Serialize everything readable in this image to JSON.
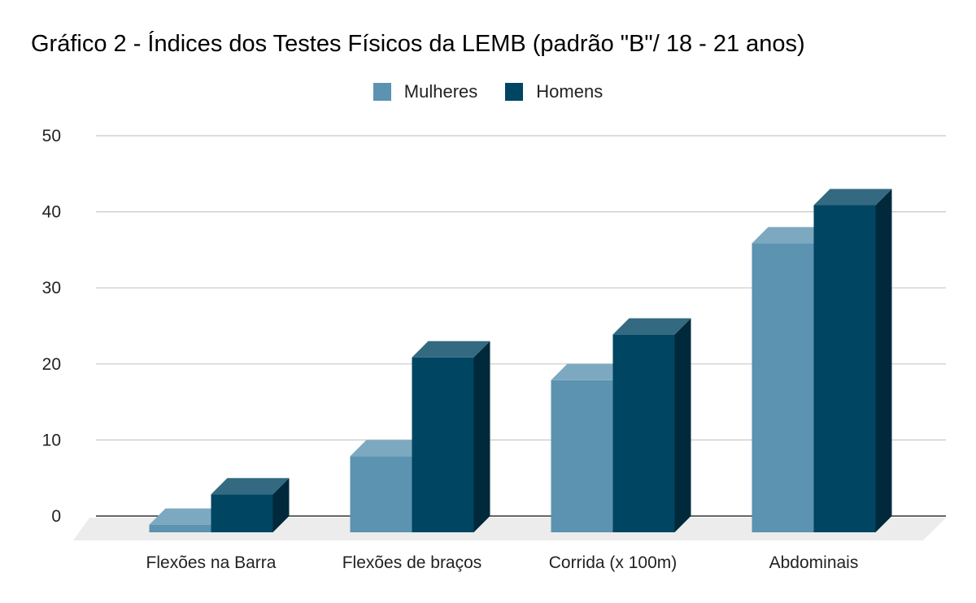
{
  "chart_data": {
    "type": "bar",
    "style": "3d-column",
    "title": "Gráfico 2 - Índices dos Testes Físicos da LEMB (padrão \"B\"/ 18 - 21 anos)",
    "categories": [
      "Flexões na Barra",
      "Flexões de braços",
      "Corrida (x 100m)",
      "Abdominais"
    ],
    "series": [
      {
        "name": "Mulheres",
        "values": [
          1,
          10,
          20,
          38
        ],
        "color": "#5b93b0"
      },
      {
        "name": "Homens",
        "values": [
          5,
          23,
          26,
          43
        ],
        "color": "#004562"
      }
    ],
    "xlabel": "",
    "ylabel": "",
    "ylim": [
      0,
      50
    ],
    "yticks": [
      0,
      10,
      20,
      30,
      40,
      50
    ],
    "grid": true,
    "legend_position": "top-center"
  }
}
